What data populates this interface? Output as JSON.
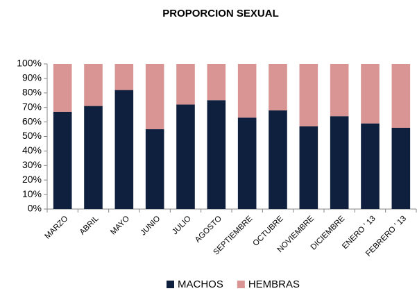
{
  "chart_data": {
    "type": "stacked_bar",
    "title": "PROPORCION SEXUAL",
    "categories": [
      "MARZO",
      "ABRIL",
      "MAYO",
      "JUNIO",
      "JULIO",
      "AGOSTO",
      "SEPTIEMBRE",
      "OCTUBRE",
      "NOVIEMBRE",
      "DICIEMBRE",
      "ENERO ' 13",
      "FEBRERO ' 13"
    ],
    "series": [
      {
        "name": "MACHOS",
        "color": "#0f203f",
        "values": [
          67,
          71,
          82,
          55,
          72,
          75,
          63,
          68,
          57,
          64,
          59,
          56
        ]
      },
      {
        "name": "HEMBRAS",
        "color": "#d99594",
        "values": [
          33,
          29,
          18,
          45,
          28,
          25,
          37,
          32,
          43,
          36,
          41,
          44
        ]
      }
    ],
    "ylim": [
      0,
      100
    ],
    "yticks": [
      {
        "value": 0,
        "label": "0%"
      },
      {
        "value": 10,
        "label": "10%"
      },
      {
        "value": 20,
        "label": "20%"
      },
      {
        "value": 30,
        "label": "30%"
      },
      {
        "value": 40,
        "label": "40%"
      },
      {
        "value": 50,
        "label": "50%"
      },
      {
        "value": 60,
        "label": "60%"
      },
      {
        "value": 70,
        "label": "70%"
      },
      {
        "value": 80,
        "label": "80%"
      },
      {
        "value": 90,
        "label": "90%"
      },
      {
        "value": 100,
        "label": "100%"
      }
    ],
    "grid": false,
    "legend": "bottom"
  }
}
